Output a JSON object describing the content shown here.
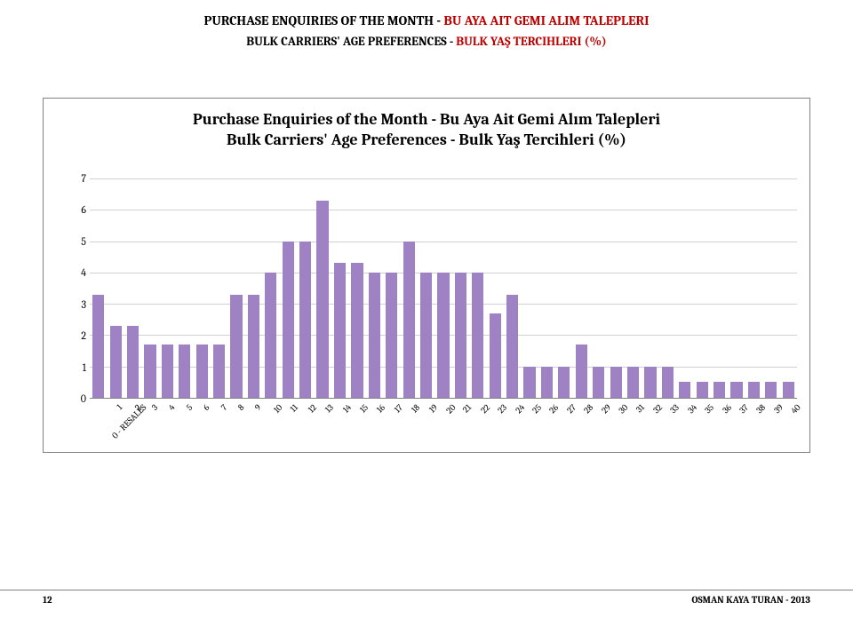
{
  "header": {
    "line1_black": "PURCHASE ENQUIRIES OF THE MONTH - ",
    "line1_red": "BU AYA AIT GEMI ALIM TALEPLERI",
    "line2_black": "BULK CARRIERS' AGE PREFERENCES - ",
    "line2_red": "BULK YAŞ TERCIHLERI (%)"
  },
  "chart": {
    "type": "bar",
    "title_line1": "Purchase Enquiries of the Month - Bu Aya Ait Gemi Alım Talepleri",
    "title_line2": "Bulk Carriers' Age Preferences - Bulk Yaş Tercihleri (%)",
    "title_fontsize": 18,
    "bar_color": "#9f82c4",
    "grid_color": "#d0d0d0",
    "axis_color": "#808080",
    "background_color": "#ffffff",
    "text_color": "#000000",
    "ylim": [
      0,
      7
    ],
    "ytick_step": 1,
    "yticks": [
      0,
      1,
      2,
      3,
      4,
      5,
      6,
      7
    ],
    "label_fontsize": 10,
    "categories": [
      "0 - RESALES",
      "1",
      "2",
      "3",
      "4",
      "5",
      "6",
      "7",
      "8",
      "9",
      "10",
      "11",
      "12",
      "13",
      "14",
      "15",
      "16",
      "17",
      "18",
      "19",
      "20",
      "21",
      "22",
      "23",
      "24",
      "25",
      "26",
      "27",
      "28",
      "29",
      "30",
      "31",
      "32",
      "33",
      "34",
      "35",
      "36",
      "37",
      "38",
      "39",
      "40"
    ],
    "values": [
      3.3,
      2.3,
      2.3,
      1.7,
      1.7,
      1.7,
      1.7,
      1.7,
      3.3,
      3.3,
      4.0,
      5.0,
      5.0,
      6.3,
      4.3,
      4.3,
      4.0,
      4.0,
      5.0,
      4.0,
      4.0,
      4.0,
      4.0,
      2.7,
      3.3,
      1.0,
      1.0,
      1.0,
      1.7,
      1.0,
      1.0,
      1.0,
      1.0,
      1.0,
      0.5,
      0.5,
      0.5,
      0.5,
      0.5,
      0.5,
      0.5
    ],
    "bar_width": 0.68
  },
  "footer": {
    "page_number": "12",
    "right_text": "OSMAN KAYA TURAN - 2013"
  }
}
